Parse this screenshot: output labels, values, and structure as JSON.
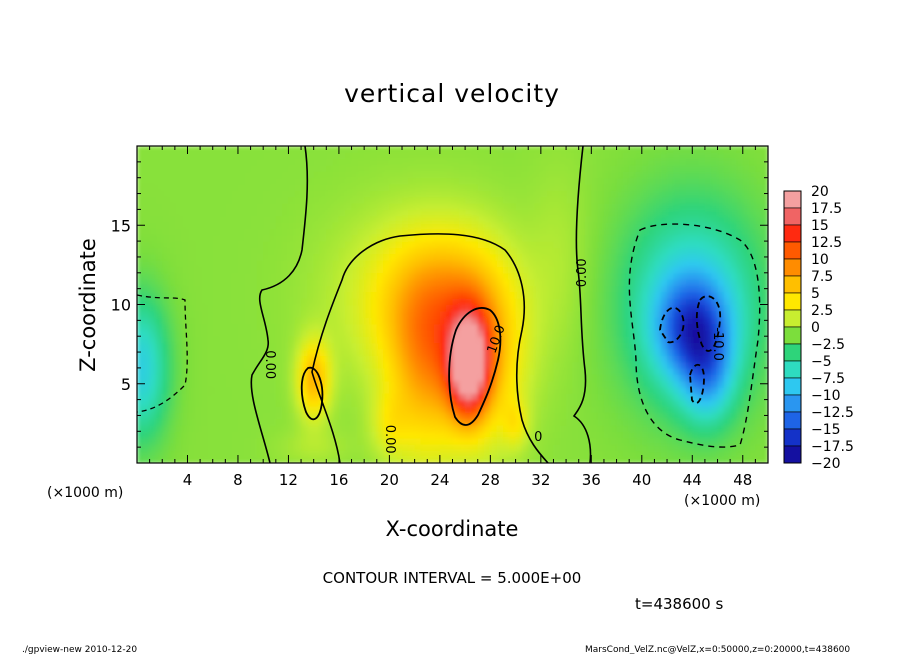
{
  "chart_data": {
    "type": "heatmap",
    "title": "vertical velocity",
    "xlabel": "X-coordinate",
    "ylabel": "Z-coordinate",
    "x_unit_label": "(×1000 m)",
    "y_unit_label": "(×1000 m)",
    "xlim": [
      0,
      50
    ],
    "ylim": [
      0,
      20
    ],
    "x_ticks": [
      4,
      8,
      12,
      16,
      20,
      24,
      28,
      32,
      36,
      40,
      44,
      48
    ],
    "y_ticks": [
      5,
      10,
      15
    ],
    "colorbar": {
      "labels": [
        "20",
        "17.5",
        "15",
        "12.5",
        "10",
        "7.5",
        "5",
        "2.5",
        "0",
        "−2.5",
        "−5",
        "−7.5",
        "−10",
        "−12.5",
        "−15",
        "−17.5",
        "−20"
      ],
      "colors": [
        "#f4a0a0",
        "#f06464",
        "#ff2a10",
        "#ff5a00",
        "#ff8c00",
        "#ffbf00",
        "#ffe800",
        "#c8ee30",
        "#7cde3c",
        "#2ed47a",
        "#2edcc0",
        "#2ec8f0",
        "#2a96f0",
        "#1e64e6",
        "#1432c8",
        "#1410a0",
        "#5a10a8"
      ]
    },
    "blobs": [
      {
        "x": 14,
        "z": 5.3,
        "w": 7.5,
        "rx": 1.3,
        "rz": 2.4
      },
      {
        "x": 20,
        "z": 2.5,
        "w": 2.5,
        "rx": 1.5,
        "rz": 2.0
      },
      {
        "x": 22.5,
        "z": 5,
        "w": 5,
        "rx": 2.8,
        "rz": 5.5
      },
      {
        "x": 26.3,
        "z": 6.2,
        "w": 17,
        "rx": 1.5,
        "rz": 3.0
      },
      {
        "x": 27,
        "z": 6.5,
        "w": 7,
        "rx": 3.5,
        "rz": 5.5
      },
      {
        "x": 24,
        "z": 10,
        "w": 5.5,
        "rx": 4.8,
        "rz": 4.5
      },
      {
        "x": 22,
        "z": 10.5,
        "w": 3,
        "rx": 7,
        "rz": 5.5
      },
      {
        "x": 30,
        "z": 2.5,
        "w": 3,
        "rx": 1,
        "rz": 1.5
      },
      {
        "x": 33.5,
        "z": 13,
        "w": 1.2,
        "rx": 2.5,
        "rz": 6
      },
      {
        "x": 44,
        "z": 8.5,
        "w": -9.5,
        "rx": 2.8,
        "rz": 3.2
      },
      {
        "x": 45.2,
        "z": 5.5,
        "w": -6,
        "rx": 2,
        "rz": 3
      },
      {
        "x": 44,
        "z": 10,
        "w": -7,
        "rx": 5.5,
        "rz": 6.5
      },
      {
        "x": 0.3,
        "z": 6,
        "w": -7,
        "rx": 2.2,
        "rz": 4.5
      },
      {
        "x": 14,
        "z": 1.0,
        "w": 1.2,
        "rx": 3,
        "rz": 1.2
      }
    ],
    "contour_interval_text": "CONTOUR INTERVAL =  5.000E+00",
    "contour_labels": [
      {
        "text": "0.00",
        "x": 10.5,
        "z": 6.2,
        "angle": 90
      },
      {
        "text": "0.00",
        "x": 20,
        "z": 1.5,
        "angle": 90
      },
      {
        "text": "0.00",
        "x": 35.3,
        "z": 12,
        "angle": -90
      },
      {
        "text": "10.0",
        "x": 28.5,
        "z": 7.8,
        "angle": -70
      },
      {
        "text": "0",
        "x": 31.8,
        "z": 1.6,
        "angle": 0
      },
      {
        "text": "-10.0",
        "x": 46,
        "z": 7.5,
        "angle": 90
      }
    ],
    "time_label": "t=438600 s"
  },
  "footer": {
    "left": "./gpview-new   2010-12-20",
    "right": "MarsCond_VelZ.nc@VelZ,x=0:50000,z=0:20000,t=438600"
  }
}
